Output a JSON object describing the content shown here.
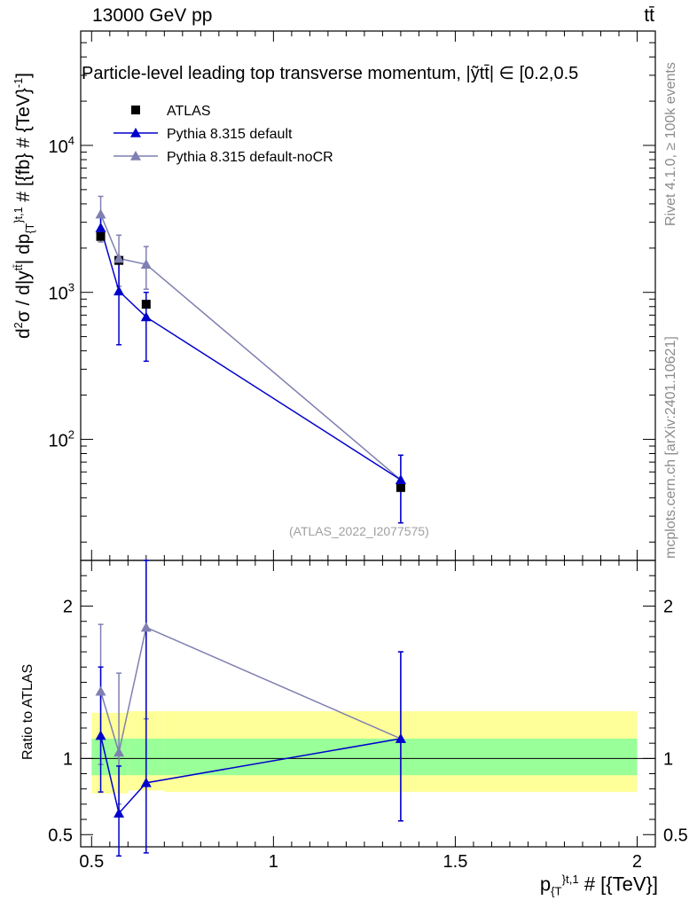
{
  "header": {
    "energy_label": "13000 GeV pp",
    "process_label": "tt̄"
  },
  "side": {
    "rivet_label": "Rivet 4.1.0, ≥ 100k events",
    "mcplots_label": "mcplots.cern.ch [arXiv:2401.10621]"
  },
  "watermark": "(ATLAS_2022_I2077575)",
  "chart_data": {
    "type": "line",
    "title": "Particle-level leading top transverse momentum, |ỹtt̄| ∈ [0.2,0.5",
    "ylabel": "d²σ / d|y^tt̄| dp_{T}^{t,1} # [{fb} # {TeV}⁻¹]",
    "ratio_ylabel": "Ratio to ATLAS",
    "xlabel": "p_{T}^{t,1} # [{TeV}]",
    "x_range": [
      0.47,
      2.05
    ],
    "y_range": [
      15,
      60000
    ],
    "y_scale": "log",
    "ratio_range": [
      0.42,
      2.3
    ],
    "x_ticks": [
      {
        "v": 0.5,
        "label": "0.5"
      },
      {
        "v": 1.0,
        "label": "1"
      },
      {
        "v": 1.5,
        "label": "1.5"
      },
      {
        "v": 2.0,
        "label": "2"
      }
    ],
    "y_ticks": [
      {
        "v": 100,
        "label": "10",
        "exp": "2"
      },
      {
        "v": 1000,
        "label": "10",
        "exp": "3"
      },
      {
        "v": 10000,
        "label": "10",
        "exp": "4"
      }
    ],
    "ratio_ticks": [
      {
        "v": 0.5,
        "label": "0.5"
      },
      {
        "v": 1.0,
        "label": "1"
      },
      {
        "v": 2.0,
        "label": "2"
      }
    ],
    "legend": [
      {
        "name": "ATLAS",
        "marker": "square",
        "color": "#000000"
      },
      {
        "name": "Pythia 8.315 default",
        "marker": "triangle",
        "color": "#0000cc"
      },
      {
        "name": "Pythia 8.315 default-noCR",
        "marker": "triangle",
        "color": "#7f7fb2"
      }
    ],
    "bins": [
      {
        "lo": 0.5,
        "hi": 0.55
      },
      {
        "lo": 0.55,
        "hi": 0.6
      },
      {
        "lo": 0.6,
        "hi": 0.7
      },
      {
        "lo": 0.7,
        "hi": 2.0
      }
    ],
    "data": {
      "name": "ATLAS",
      "x": [
        0.525,
        0.575,
        0.65,
        1.35
      ],
      "y": [
        2400,
        1650,
        830,
        47
      ],
      "band_inner": [
        [
          0.89,
          1.13
        ],
        [
          0.89,
          1.13
        ],
        [
          0.89,
          1.13
        ],
        [
          0.89,
          1.13
        ]
      ],
      "band_outer": [
        [
          0.77,
          1.3
        ],
        [
          0.77,
          1.3
        ],
        [
          0.79,
          1.31
        ],
        [
          0.78,
          1.31
        ]
      ]
    },
    "series": [
      {
        "name": "Pythia 8.315 default",
        "color": "#0000cc",
        "x": [
          0.525,
          0.575,
          0.65,
          1.35
        ],
        "y": [
          2750,
          1020,
          680,
          53
        ],
        "yerr_lo": [
          2300,
          440,
          340,
          27
        ],
        "yerr_hi": [
          3300,
          1600,
          1000,
          78
        ],
        "ratio": [
          1.15,
          0.64,
          0.84,
          1.13
        ],
        "ratio_lo": [
          0.78,
          0.36,
          0.38,
          0.59
        ],
        "ratio_hi": [
          1.6,
          0.95,
          2.3,
          1.7
        ]
      },
      {
        "name": "Pythia 8.315 default-noCR",
        "color": "#7f7fb2",
        "x": [
          0.525,
          0.575,
          0.65,
          1.35
        ],
        "y": [
          3400,
          1700,
          1550,
          53
        ],
        "yerr_lo": [
          2200,
          1100,
          1050,
          27
        ],
        "yerr_hi": [
          4500,
          2450,
          2050,
          78
        ],
        "ratio": [
          1.44,
          1.04,
          1.86,
          1.13
        ],
        "ratio_lo": [
          0.96,
          0.7,
          1.26,
          0.59
        ],
        "ratio_hi": [
          1.88,
          1.56,
          2.3,
          1.7
        ]
      }
    ]
  }
}
